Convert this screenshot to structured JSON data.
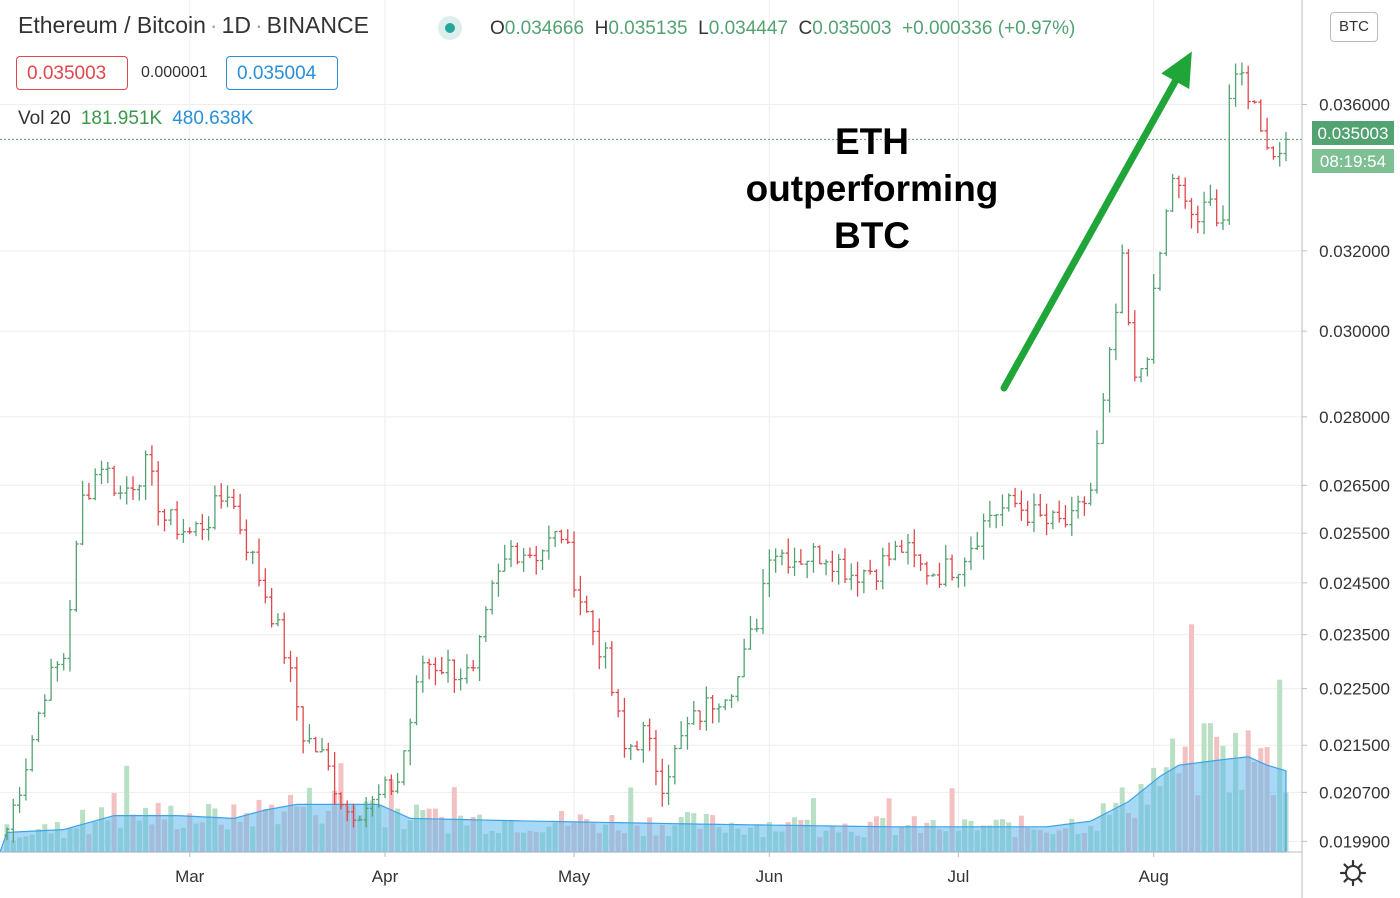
{
  "header": {
    "symbol": "Ethereum / Bitcoin",
    "interval": "1D",
    "exchange": "BINANCE",
    "ohlc": {
      "o_label": "O",
      "o": "0.034666",
      "h_label": "H",
      "h": "0.035135",
      "l_label": "L",
      "l": "0.034447",
      "c_label": "C",
      "c": "0.035003",
      "change": "+0.000336 (+0.97%)"
    },
    "bid": "0.035003",
    "spread": "0.000001",
    "ask": "0.035004",
    "volume": {
      "label": "Vol 20",
      "value": "181.951K",
      "ma": "480.638K"
    }
  },
  "price_axis": {
    "currency_button": "BTC",
    "ticks": [
      "0.036000",
      "0.032000",
      "0.030000",
      "0.028000",
      "0.026500",
      "0.025500",
      "0.024500",
      "0.023500",
      "0.022500",
      "0.021500",
      "0.020700",
      "0.019900"
    ],
    "last_price_label": "0.035003",
    "countdown_label": "08:19:54"
  },
  "time_axis": {
    "ticks": [
      "Mar",
      "Apr",
      "May",
      "Jun",
      "Jul",
      "Aug"
    ]
  },
  "annotation": {
    "lines": [
      "ETH",
      "outperforming",
      "BTC"
    ]
  },
  "colors": {
    "up": "#53a272",
    "down": "#e0474c",
    "volume_ma": "#5fb8ee",
    "arrow": "#1fa538",
    "grid": "#eeeeee"
  },
  "chart_data": {
    "type": "ohlc",
    "title": "Ethereum / Bitcoin · 1D · BINANCE",
    "scale": "log",
    "ylim": [
      0.0194,
      0.0381
    ],
    "x_range": [
      "2020-02-01",
      "2020-08-22"
    ],
    "x_ticks": [
      "Mar",
      "Apr",
      "May",
      "Jun",
      "Jul",
      "Aug"
    ],
    "y_ticks": [
      0.036,
      0.032,
      0.03,
      0.028,
      0.0265,
      0.0255,
      0.0245,
      0.0235,
      0.0225,
      0.0215,
      0.0207,
      0.0199
    ],
    "grid": true,
    "last_price": 0.035003,
    "anchors": [
      [
        "2020-02-01",
        0.0201
      ],
      [
        "2020-02-04",
        0.0212
      ],
      [
        "2020-02-07",
        0.0225
      ],
      [
        "2020-02-10",
        0.0231
      ],
      [
        "2020-02-13",
        0.0262
      ],
      [
        "2020-02-16",
        0.027
      ],
      [
        "2020-02-19",
        0.0263
      ],
      [
        "2020-02-23",
        0.0269
      ],
      [
        "2020-02-26",
        0.0258
      ],
      [
        "2020-03-01",
        0.0255
      ],
      [
        "2020-03-04",
        0.0258
      ],
      [
        "2020-03-07",
        0.0264
      ],
      [
        "2020-03-10",
        0.0253
      ],
      [
        "2020-03-13",
        0.0243
      ],
      [
        "2020-03-16",
        0.0232
      ],
      [
        "2020-03-19",
        0.0217
      ],
      [
        "2020-03-22",
        0.0213
      ],
      [
        "2020-03-26",
        0.0204
      ],
      [
        "2020-03-30",
        0.0205
      ],
      [
        "2020-04-03",
        0.0209
      ],
      [
        "2020-04-07",
        0.023
      ],
      [
        "2020-04-11",
        0.0229
      ],
      [
        "2020-04-15",
        0.0227
      ],
      [
        "2020-04-18",
        0.0243
      ],
      [
        "2020-04-21",
        0.0252
      ],
      [
        "2020-04-25",
        0.0251
      ],
      [
        "2020-04-29",
        0.0255
      ],
      [
        "2020-05-02",
        0.0242
      ],
      [
        "2020-05-06",
        0.023
      ],
      [
        "2020-05-09",
        0.0214
      ],
      [
        "2020-05-12",
        0.0217
      ],
      [
        "2020-05-15",
        0.0209
      ],
      [
        "2020-05-19",
        0.0218
      ],
      [
        "2020-05-23",
        0.0223
      ],
      [
        "2020-05-27",
        0.0227
      ],
      [
        "2020-05-30",
        0.0238
      ],
      [
        "2020-06-01",
        0.0252
      ],
      [
        "2020-06-05",
        0.025
      ],
      [
        "2020-06-10",
        0.0251
      ],
      [
        "2020-06-14",
        0.0247
      ],
      [
        "2020-06-18",
        0.0248
      ],
      [
        "2020-06-22",
        0.0252
      ],
      [
        "2020-06-25",
        0.0248
      ],
      [
        "2020-06-28",
        0.0247
      ],
      [
        "2020-07-01",
        0.0249
      ],
      [
        "2020-07-06",
        0.0259
      ],
      [
        "2020-07-10",
        0.0261
      ],
      [
        "2020-07-15",
        0.0257
      ],
      [
        "2020-07-19",
        0.0257
      ],
      [
        "2020-07-22",
        0.0264
      ],
      [
        "2020-07-24",
        0.0282
      ],
      [
        "2020-07-27",
        0.0316
      ],
      [
        "2020-07-29",
        0.0287
      ],
      [
        "2020-07-31",
        0.0296
      ],
      [
        "2020-08-02",
        0.0319
      ],
      [
        "2020-08-04",
        0.034
      ],
      [
        "2020-08-06",
        0.0331
      ],
      [
        "2020-08-08",
        0.0328
      ],
      [
        "2020-08-10",
        0.0332
      ],
      [
        "2020-08-12",
        0.0329
      ],
      [
        "2020-08-13",
        0.0362
      ],
      [
        "2020-08-15",
        0.0368
      ],
      [
        "2020-08-18",
        0.0355
      ],
      [
        "2020-08-20",
        0.0345
      ],
      [
        "2020-08-22",
        0.035
      ]
    ],
    "volume": {
      "label": "Vol 20",
      "scale_max": 1.0,
      "ma_points": [
        [
          "2020-02-01",
          0.07
        ],
        [
          "2020-02-10",
          0.08
        ],
        [
          "2020-02-18",
          0.13
        ],
        [
          "2020-02-28",
          0.13
        ],
        [
          "2020-03-08",
          0.12
        ],
        [
          "2020-03-13",
          0.15
        ],
        [
          "2020-03-18",
          0.17
        ],
        [
          "2020-03-31",
          0.17
        ],
        [
          "2020-04-05",
          0.12
        ],
        [
          "2020-04-25",
          0.11
        ],
        [
          "2020-05-20",
          0.1
        ],
        [
          "2020-06-20",
          0.09
        ],
        [
          "2020-07-15",
          0.09
        ],
        [
          "2020-07-22",
          0.11
        ],
        [
          "2020-07-28",
          0.18
        ],
        [
          "2020-08-02",
          0.27
        ],
        [
          "2020-08-05",
          0.31
        ],
        [
          "2020-08-12",
          0.33
        ],
        [
          "2020-08-16",
          0.34
        ],
        [
          "2020-08-19",
          0.31
        ],
        [
          "2020-08-22",
          0.29
        ]
      ]
    }
  }
}
